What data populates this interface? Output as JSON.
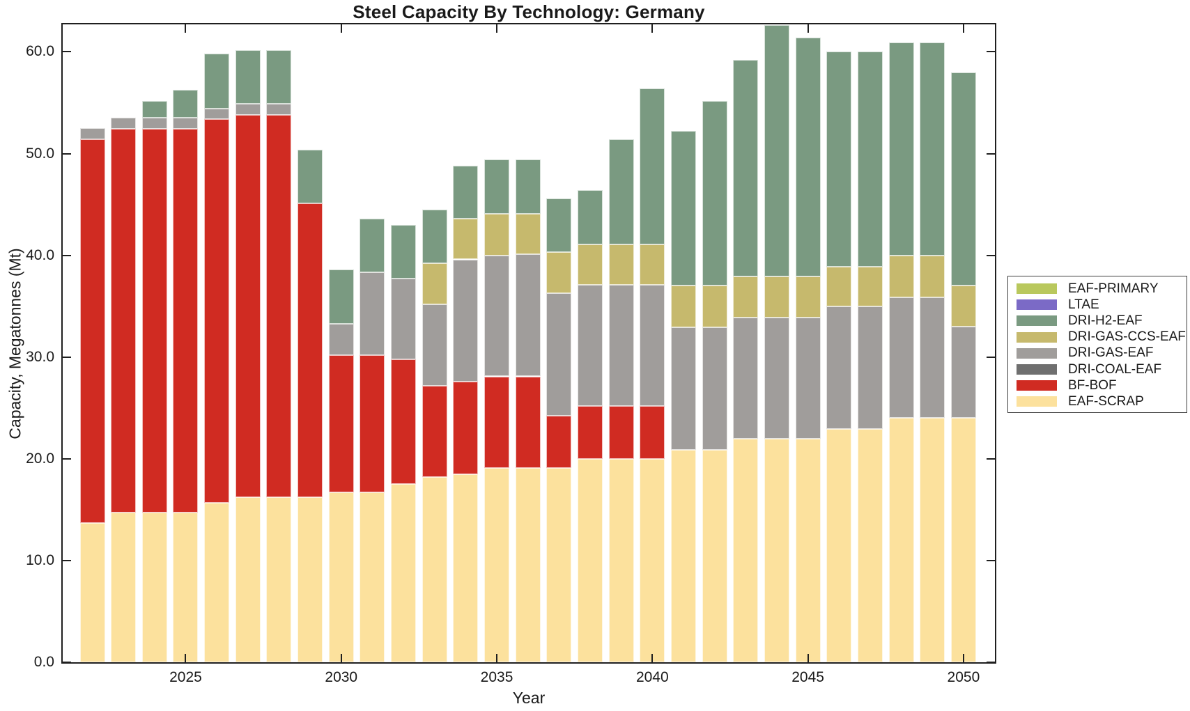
{
  "chart_data": {
    "type": "bar",
    "stacked": true,
    "title": "Steel Capacity By Technology: Germany",
    "xlabel": "Year",
    "ylabel": "Capacity, Megatonnes (Mt)",
    "ylim": [
      0,
      62.7
    ],
    "ytick_values": [
      0,
      10,
      20,
      30,
      40,
      50,
      60
    ],
    "ytick_labels": [
      "0.0",
      "10.0",
      "20.0",
      "30.0",
      "40.0",
      "50.0",
      "60.0"
    ],
    "xtick_years": [
      2025,
      2030,
      2035,
      2040,
      2045,
      2050
    ],
    "grid": false,
    "years": [
      2022,
      2023,
      2024,
      2025,
      2026,
      2027,
      2028,
      2029,
      2030,
      2031,
      2032,
      2033,
      2034,
      2035,
      2036,
      2037,
      2038,
      2039,
      2040,
      2041,
      2042,
      2043,
      2044,
      2045,
      2046,
      2047,
      2048,
      2049,
      2050
    ],
    "series": [
      {
        "name": "EAF-SCRAP",
        "color": "#fce19d",
        "values": [
          13.7,
          14.7,
          14.7,
          14.7,
          15.7,
          16.2,
          16.2,
          16.2,
          16.7,
          16.7,
          17.5,
          18.2,
          18.5,
          19.1,
          19.1,
          19.1,
          20.0,
          20.0,
          20.0,
          20.9,
          20.9,
          22.0,
          22.0,
          22.0,
          22.9,
          22.9,
          24.0,
          24.0,
          24.0
        ]
      },
      {
        "name": "BF-BOF",
        "color": "#d02b22",
        "values": [
          37.7,
          37.7,
          37.7,
          37.7,
          37.7,
          37.6,
          37.6,
          28.9,
          13.5,
          13.5,
          12.3,
          9.0,
          9.1,
          9.0,
          9.0,
          5.1,
          5.2,
          5.2,
          5.2,
          0,
          0,
          0,
          0,
          0,
          0,
          0,
          0,
          0,
          0
        ]
      },
      {
        "name": "DRI-COAL-EAF",
        "color": "#6f6f6f",
        "values": [
          0,
          0,
          0,
          0,
          0,
          0,
          0,
          0,
          0,
          0,
          0,
          0,
          0,
          0,
          0,
          0,
          0,
          0,
          0,
          0,
          0,
          0,
          0,
          0,
          0,
          0,
          0,
          0,
          0
        ]
      },
      {
        "name": "DRI-GAS-EAF",
        "color": "#a09d9b",
        "values": [
          1.1,
          1.1,
          1.1,
          1.1,
          1.0,
          1.1,
          1.1,
          0,
          3.1,
          8.1,
          7.9,
          8.0,
          12.0,
          11.9,
          12.0,
          12.1,
          11.9,
          11.9,
          11.9,
          12.0,
          12.0,
          11.9,
          11.9,
          11.9,
          12.1,
          12.1,
          11.9,
          11.9,
          9.0
        ]
      },
      {
        "name": "DRI-GAS-CCS-EAF",
        "color": "#c6b96d",
        "values": [
          0,
          0,
          0,
          0,
          0,
          0,
          0,
          0,
          0,
          0,
          0,
          4.0,
          4.0,
          4.1,
          4.0,
          4.0,
          4.0,
          4.0,
          4.0,
          4.1,
          4.1,
          4.0,
          4.0,
          4.0,
          3.9,
          3.9,
          4.1,
          4.1,
          4.0
        ]
      },
      {
        "name": "DRI-H2-EAF",
        "color": "#7a9a81",
        "values": [
          0,
          0,
          1.7,
          2.8,
          5.4,
          5.3,
          5.3,
          5.3,
          5.3,
          5.3,
          5.3,
          5.3,
          5.2,
          5.3,
          5.3,
          5.3,
          5.3,
          10.3,
          15.3,
          15.2,
          18.2,
          21.3,
          24.7,
          23.5,
          21.1,
          21.1,
          20.9,
          20.9,
          21.0
        ]
      },
      {
        "name": "LTAE",
        "color": "#7b6ac6",
        "values": [
          0,
          0,
          0,
          0,
          0,
          0,
          0,
          0,
          0,
          0,
          0,
          0,
          0,
          0,
          0,
          0,
          0,
          0,
          0,
          0,
          0,
          0,
          0,
          0,
          0,
          0,
          0,
          0,
          0
        ]
      },
      {
        "name": "EAF-PRIMARY",
        "color": "#b9c85d",
        "values": [
          0,
          0,
          0,
          0,
          0,
          0,
          0,
          0,
          0,
          0,
          0,
          0,
          0,
          0,
          0,
          0,
          0,
          0,
          0,
          0,
          0,
          0,
          0,
          0,
          0,
          0,
          0,
          0,
          0
        ]
      }
    ],
    "legend": {
      "position": "right",
      "entries_top_to_bottom": [
        "EAF-PRIMARY",
        "LTAE",
        "DRI-H2-EAF",
        "DRI-GAS-CCS-EAF",
        "DRI-GAS-EAF",
        "DRI-COAL-EAF",
        "BF-BOF",
        "EAF-SCRAP"
      ]
    }
  }
}
